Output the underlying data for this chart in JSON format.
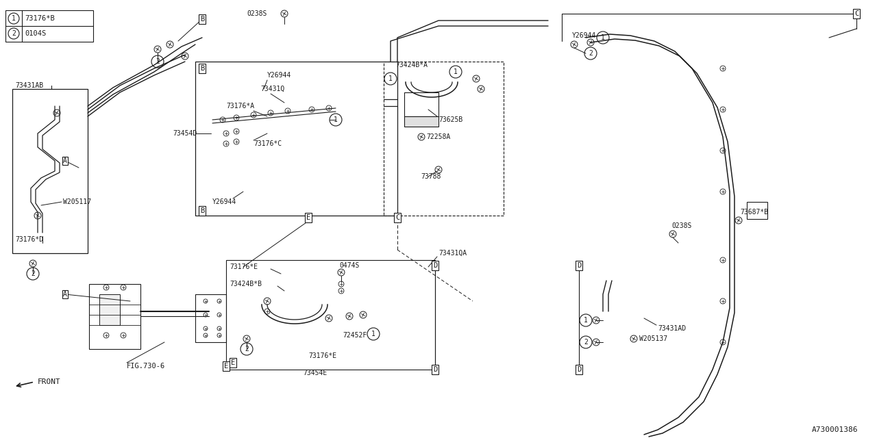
{
  "background_color": "#ffffff",
  "line_color": "#1a1a1a",
  "text_color": "#1a1a1a",
  "fig_width": 12.8,
  "fig_height": 6.4,
  "dpi": 100,
  "reference_id": "A730001386",
  "legend": [
    {
      "num": "1",
      "code": "73176*B"
    },
    {
      "num": "2",
      "code": "0104S"
    }
  ]
}
